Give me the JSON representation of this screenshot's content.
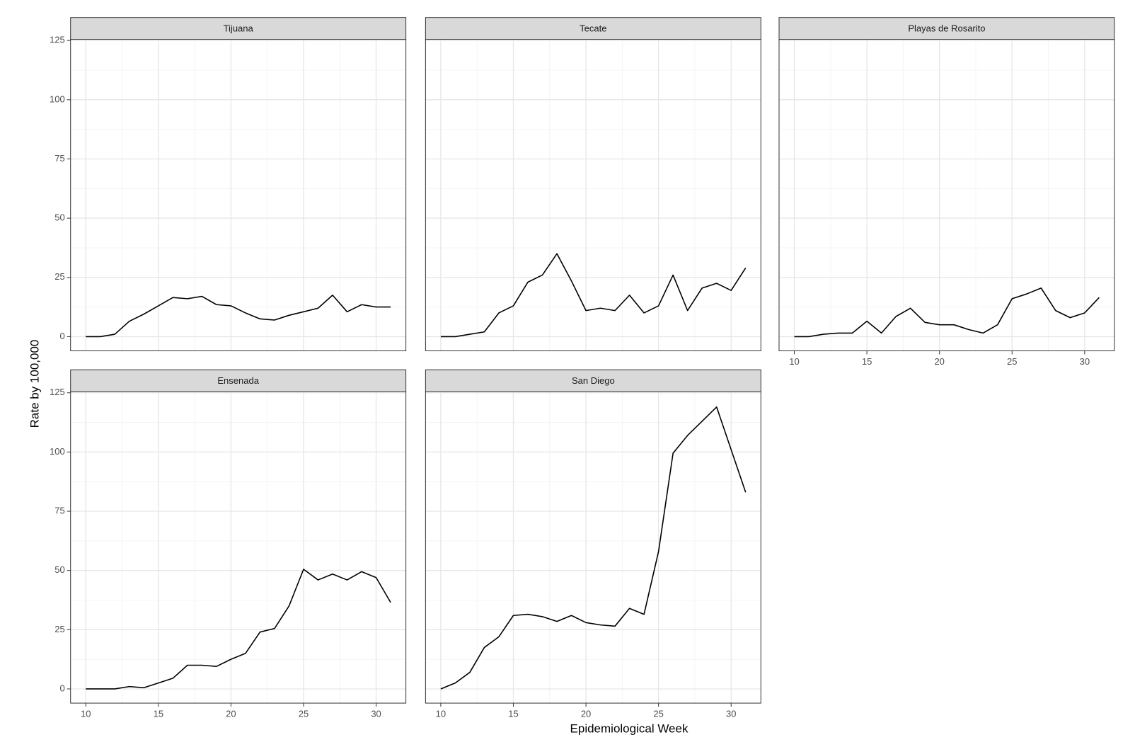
{
  "xlabel": "Epidemiological Week",
  "ylabel": "Rate by 100,000",
  "chart_data": [
    {
      "type": "line",
      "title": "Tijuana",
      "color": "#000000",
      "grid": true,
      "x_tick_labels": false,
      "y_tick_labels": true,
      "x": [
        10,
        11,
        12,
        13,
        14,
        15,
        16,
        17,
        18,
        19,
        20,
        21,
        22,
        23,
        24,
        25,
        26,
        27,
        28,
        29,
        30,
        31
      ],
      "values": [
        0,
        0,
        1,
        6.5,
        9.5,
        13,
        16.5,
        16,
        17,
        13.5,
        13,
        10,
        7.5,
        7,
        9,
        10.5,
        12,
        17.5,
        10.5,
        13.5,
        12.5,
        12.5
      ],
      "xlim": [
        8.95,
        32.05
      ],
      "ylim": [
        -6,
        125.5
      ],
      "xticks": [
        10,
        15,
        20,
        25,
        30
      ],
      "yticks": [
        0,
        25,
        50,
        75,
        100,
        125
      ]
    },
    {
      "type": "line",
      "title": "Tecate",
      "color": "#000000",
      "grid": true,
      "x_tick_labels": false,
      "y_tick_labels": false,
      "x": [
        10,
        11,
        12,
        13,
        14,
        15,
        16,
        17,
        18,
        19,
        20,
        21,
        22,
        23,
        24,
        25,
        26,
        27,
        28,
        29,
        30,
        31
      ],
      "values": [
        0,
        0,
        1,
        2,
        10,
        13,
        23,
        26,
        35,
        23.5,
        11,
        12,
        11,
        17.5,
        10,
        13,
        26,
        11,
        20.5,
        22.5,
        19.5,
        29
      ],
      "xlim": [
        8.95,
        32.05
      ],
      "ylim": [
        -6,
        125.5
      ],
      "xticks": [
        10,
        15,
        20,
        25,
        30
      ],
      "yticks": [
        0,
        25,
        50,
        75,
        100,
        125
      ]
    },
    {
      "type": "line",
      "title": "Playas de Rosarito",
      "color": "#000000",
      "grid": true,
      "x_tick_labels": true,
      "y_tick_labels": false,
      "x": [
        10,
        11,
        12,
        13,
        14,
        15,
        16,
        17,
        18,
        19,
        20,
        21,
        22,
        23,
        24,
        25,
        26,
        27,
        28,
        29,
        30,
        31
      ],
      "values": [
        0,
        0,
        1,
        1.5,
        1.5,
        6.5,
        1.5,
        8.5,
        12,
        6,
        5,
        5,
        3,
        1.5,
        5,
        16,
        18,
        20.5,
        11,
        8,
        10,
        16.5
      ],
      "xlim": [
        8.95,
        32.05
      ],
      "ylim": [
        -6,
        125.5
      ],
      "xticks": [
        10,
        15,
        20,
        25,
        30
      ],
      "yticks": [
        0,
        25,
        50,
        75,
        100,
        125
      ]
    },
    {
      "type": "line",
      "title": "Ensenada",
      "color": "#000000",
      "grid": true,
      "x_tick_labels": true,
      "y_tick_labels": true,
      "x": [
        10,
        11,
        12,
        13,
        14,
        15,
        16,
        17,
        18,
        19,
        20,
        21,
        22,
        23,
        24,
        25,
        26,
        27,
        28,
        29,
        30,
        31
      ],
      "values": [
        0,
        0,
        0,
        1,
        0.5,
        2.5,
        4.5,
        10,
        10,
        9.5,
        12.5,
        15,
        24,
        25.5,
        35,
        50.5,
        46,
        48.5,
        46,
        49.5,
        47,
        36.5
      ],
      "xlim": [
        8.95,
        32.05
      ],
      "ylim": [
        -6,
        125.5
      ],
      "xticks": [
        10,
        15,
        20,
        25,
        30
      ],
      "yticks": [
        0,
        25,
        50,
        75,
        100,
        125
      ]
    },
    {
      "type": "line",
      "title": "San Diego",
      "color": "#000000",
      "grid": true,
      "x_tick_labels": true,
      "y_tick_labels": false,
      "x": [
        10,
        11,
        12,
        13,
        14,
        15,
        16,
        17,
        18,
        19,
        20,
        21,
        22,
        23,
        24,
        25,
        26,
        27,
        28,
        29,
        30,
        31
      ],
      "values": [
        0,
        2.5,
        7,
        17.5,
        22,
        31,
        31.5,
        30.5,
        28.5,
        31,
        28,
        27,
        26.5,
        34,
        31.5,
        58,
        99.5,
        107,
        113,
        119,
        101,
        83
      ],
      "xlim": [
        8.95,
        32.05
      ],
      "ylim": [
        -6,
        125.5
      ],
      "xticks": [
        10,
        15,
        20,
        25,
        30
      ],
      "yticks": [
        0,
        25,
        50,
        75,
        100,
        125
      ]
    }
  ]
}
